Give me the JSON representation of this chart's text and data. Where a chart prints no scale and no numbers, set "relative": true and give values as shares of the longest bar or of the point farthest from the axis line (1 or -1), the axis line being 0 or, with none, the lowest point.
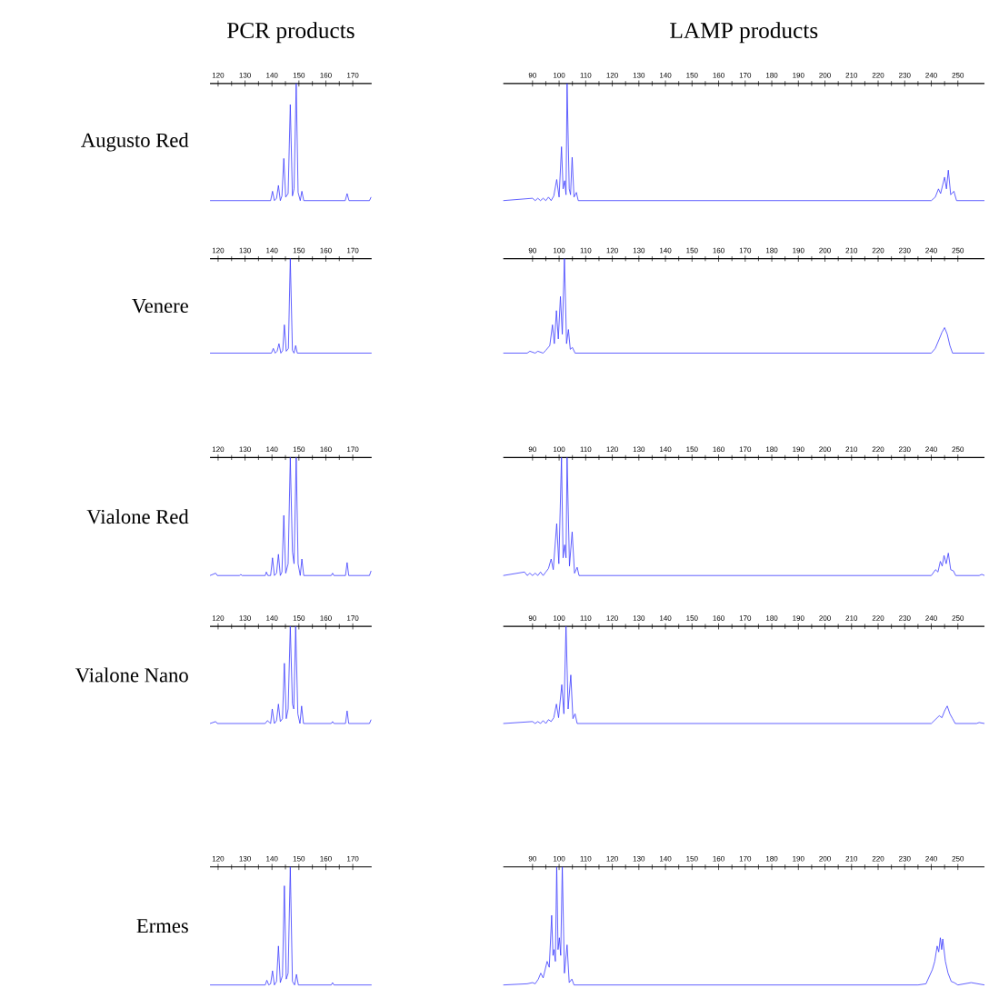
{
  "chart_data": [
    {
      "type": "line",
      "title": "PCR products",
      "ylabel": "Augusto Red",
      "relative": true,
      "xlim": [
        117,
        177
      ],
      "xticks": [
        120,
        130,
        140,
        150,
        160,
        170
      ],
      "x": [
        117,
        139.5,
        140.2,
        140.9,
        141.7,
        142.4,
        143.1,
        143.7,
        144.4,
        145.1,
        146,
        146.8,
        147.6,
        148.2,
        149,
        149.7,
        150.5,
        151.1,
        151.8,
        167.2,
        167.9,
        168.6,
        176.2,
        176.8
      ],
      "series": [
        {
          "color": "#3a3aff",
          "values": [
            0,
            0,
            0.08,
            0,
            0.02,
            0.13,
            0,
            0.04,
            0.36,
            0.03,
            0.06,
            0.82,
            0.04,
            0.1,
            1,
            0.07,
            0,
            0.08,
            0,
            0,
            0.06,
            0,
            0,
            0.03
          ]
        }
      ]
    },
    {
      "type": "line",
      "title": "LAMP products",
      "relative": true,
      "xlim": [
        79,
        260
      ],
      "xticks": [
        90,
        100,
        110,
        120,
        130,
        140,
        150,
        160,
        170,
        180,
        190,
        200,
        210,
        220,
        230,
        240,
        250
      ],
      "x": [
        79,
        90,
        91,
        92,
        93,
        94,
        95,
        96,
        97,
        98,
        99.1,
        100,
        100.9,
        101.5,
        102.1,
        102.6,
        103,
        103.8,
        104.3,
        104.9,
        105.6,
        106.5,
        107.2,
        240,
        241.5,
        242.7,
        243.5,
        245,
        245.7,
        246.4,
        247.3,
        248.5,
        249.5,
        260
      ],
      "series": [
        {
          "color": "#3a3aff",
          "values": [
            0,
            0.02,
            0,
            0.02,
            0,
            0.02,
            0,
            0.03,
            0,
            0.04,
            0.18,
            0.03,
            0.46,
            0.1,
            0.17,
            0.05,
            1,
            0.1,
            0.05,
            0.37,
            0.03,
            0.07,
            0,
            0,
            0.03,
            0.1,
            0.06,
            0.2,
            0.1,
            0.26,
            0.05,
            0.08,
            0,
            0
          ]
        }
      ]
    },
    {
      "type": "line",
      "ylabel": "Venere",
      "relative": true,
      "xlim": [
        117,
        177
      ],
      "xticks": [
        120,
        130,
        140,
        150,
        160,
        170
      ],
      "x": [
        117,
        139.8,
        140.5,
        141.2,
        141.9,
        142.6,
        143.3,
        144,
        144.6,
        145.3,
        146.1,
        146.8,
        147.6,
        148.2,
        148.8,
        149.4,
        177
      ],
      "series": [
        {
          "color": "#3a3aff",
          "values": [
            0,
            0,
            0.05,
            0,
            0.02,
            0.1,
            0,
            0.03,
            0.3,
            0.02,
            0.05,
            1,
            0.03,
            0,
            0.08,
            0,
            0
          ]
        }
      ]
    },
    {
      "type": "line",
      "relative": true,
      "xlim": [
        79,
        260
      ],
      "xticks": [
        90,
        100,
        110,
        120,
        130,
        140,
        150,
        160,
        170,
        180,
        190,
        200,
        210,
        220,
        230,
        240,
        250
      ],
      "x": [
        79,
        88,
        89,
        91,
        92,
        94,
        95,
        96.5,
        97.5,
        98.2,
        99,
        99.7,
        100.5,
        101.2,
        102,
        102.8,
        103.5,
        104.2,
        105,
        106,
        240,
        241.5,
        243,
        244,
        245,
        246,
        247,
        248,
        260
      ],
      "series": [
        {
          "color": "#3a3aff",
          "values": [
            0,
            0,
            0.02,
            0,
            0.02,
            0,
            0.03,
            0.08,
            0.3,
            0.1,
            0.45,
            0.15,
            0.6,
            0.2,
            1,
            0.1,
            0.25,
            0.04,
            0.06,
            0,
            0,
            0.05,
            0.15,
            0.22,
            0.27,
            0.2,
            0.08,
            0,
            0
          ]
        }
      ]
    },
    {
      "type": "line",
      "ylabel": "Vialone Red",
      "relative": true,
      "xlim": [
        117,
        177
      ],
      "xticks": [
        120,
        130,
        140,
        150,
        160,
        170
      ],
      "x": [
        117,
        119.1,
        119.7,
        128,
        128.4,
        128.9,
        137.5,
        137.9,
        138.5,
        139.5,
        140.2,
        140.9,
        141.7,
        142.4,
        143.1,
        143.7,
        144.4,
        145.1,
        146,
        146.8,
        147.6,
        148.2,
        149,
        149.7,
        150.5,
        151.1,
        151.8,
        162,
        162.5,
        163,
        167.3,
        167.9,
        168.5,
        176.2,
        176.8
      ],
      "series": [
        {
          "color": "#3a3aff",
          "values": [
            0,
            0.02,
            0,
            0,
            0.01,
            0,
            0,
            0.03,
            0,
            0,
            0.15,
            0,
            0.02,
            0.18,
            0,
            0.03,
            0.51,
            0.02,
            0.1,
            1,
            0.2,
            0.1,
            1,
            0.1,
            0,
            0.14,
            0,
            0,
            0.02,
            0,
            0,
            0.11,
            0,
            0,
            0.04
          ]
        }
      ]
    },
    {
      "type": "line",
      "relative": true,
      "xlim": [
        79,
        260
      ],
      "xticks": [
        90,
        100,
        110,
        120,
        130,
        140,
        150,
        160,
        170,
        180,
        190,
        200,
        210,
        220,
        230,
        240,
        250
      ],
      "x": [
        79,
        87,
        88,
        89,
        90,
        91,
        92,
        93,
        94,
        95,
        96,
        97,
        97.8,
        99.1,
        99.9,
        100.9,
        101.5,
        102.1,
        102.6,
        103,
        103.9,
        104.9,
        105.8,
        106.8,
        107.5,
        240,
        241.6,
        242.5,
        243.4,
        244.1,
        244.8,
        245.6,
        246.4,
        247.3,
        248.3,
        249.2,
        258,
        259,
        260
      ],
      "series": [
        {
          "color": "#3a3aff",
          "values": [
            0,
            0.03,
            0,
            0.02,
            0,
            0.02,
            0,
            0.03,
            0,
            0.03,
            0.06,
            0.14,
            0.05,
            0.44,
            0.1,
            1,
            0.15,
            0.26,
            0.15,
            1,
            0.08,
            0.37,
            0.02,
            0.07,
            0,
            0,
            0.05,
            0.03,
            0.12,
            0.08,
            0.17,
            0.1,
            0.19,
            0.05,
            0.04,
            0,
            0,
            0.01,
            0
          ]
        }
      ]
    },
    {
      "type": "line",
      "ylabel": "Vialone Nano",
      "relative": true,
      "xlim": [
        117,
        177
      ],
      "xticks": [
        120,
        130,
        140,
        150,
        160,
        170
      ],
      "x": [
        117,
        119.1,
        119.7,
        137.5,
        138.3,
        139.5,
        140.1,
        140.9,
        141.7,
        142.4,
        143.1,
        143.9,
        144.6,
        145.3,
        146,
        146.8,
        147.6,
        148.1,
        148.8,
        149.6,
        150.4,
        151,
        151.7,
        162,
        162.5,
        163,
        167.3,
        167.9,
        168.5,
        176.2,
        176.8
      ],
      "series": [
        {
          "color": "#3a3aff",
          "values": [
            0,
            0.02,
            0,
            0,
            0.03,
            0,
            0.15,
            0,
            0.03,
            0.2,
            0.02,
            0.05,
            0.62,
            0.05,
            0.15,
            1,
            0.2,
            0.15,
            1,
            0.1,
            0,
            0.18,
            0,
            0,
            0.02,
            0,
            0,
            0.13,
            0,
            0,
            0.04
          ]
        }
      ]
    },
    {
      "type": "line",
      "relative": true,
      "xlim": [
        79,
        260
      ],
      "xticks": [
        90,
        100,
        110,
        120,
        130,
        140,
        150,
        160,
        170,
        180,
        190,
        200,
        210,
        220,
        230,
        240,
        250
      ],
      "x": [
        79,
        90,
        91,
        92,
        93,
        94,
        95,
        96,
        97,
        98,
        99,
        99.8,
        101,
        101.8,
        102.6,
        103.4,
        104.4,
        105.2,
        106,
        106.8,
        240,
        241.5,
        243,
        244,
        245,
        246,
        247,
        248,
        249,
        257,
        258,
        260
      ],
      "series": [
        {
          "color": "#3a3aff",
          "values": [
            0,
            0.02,
            0,
            0.02,
            0,
            0.03,
            0,
            0.04,
            0.02,
            0.06,
            0.2,
            0.06,
            0.4,
            0.1,
            1,
            0.15,
            0.5,
            0.05,
            0.1,
            0,
            0,
            0.04,
            0.08,
            0.06,
            0.13,
            0.18,
            0.1,
            0.05,
            0,
            0,
            0.01,
            0
          ]
        }
      ]
    },
    {
      "type": "line",
      "ylabel": "Ermes",
      "relative": true,
      "xlim": [
        117,
        177
      ],
      "xticks": [
        120,
        130,
        140,
        150,
        160,
        170
      ],
      "x": [
        117,
        137.5,
        138.1,
        138.8,
        139.5,
        140.2,
        140.9,
        141.7,
        142.4,
        143.1,
        143.9,
        144.6,
        145.3,
        146,
        146.8,
        147.6,
        148.4,
        149.1,
        149.8,
        162,
        162.5,
        163,
        177
      ],
      "series": [
        {
          "color": "#3a3aff",
          "values": [
            0,
            0,
            0.04,
            0,
            0.01,
            0.12,
            0,
            0.03,
            0.33,
            0.02,
            0.08,
            0.84,
            0.05,
            0.1,
            1,
            0.03,
            0,
            0.09,
            0,
            0,
            0.02,
            0,
            0
          ]
        }
      ]
    },
    {
      "type": "line",
      "relative": true,
      "xlim": [
        79,
        260
      ],
      "xticks": [
        90,
        100,
        110,
        120,
        130,
        140,
        150,
        160,
        170,
        180,
        190,
        200,
        210,
        220,
        230,
        240,
        250
      ],
      "x": [
        79,
        88,
        90,
        91,
        92.2,
        93.1,
        94,
        95.5,
        96.3,
        97.2,
        97.7,
        98.1,
        98.6,
        99.1,
        99.6,
        100.1,
        100.6,
        101.2,
        102,
        103,
        103.8,
        104.8,
        105.6,
        235,
        238,
        240.4,
        241.3,
        242.2,
        242.8,
        243.4,
        243.9,
        244.3,
        245.3,
        246.3,
        247.5,
        248.6,
        250,
        255,
        260
      ],
      "series": [
        {
          "color": "#3a3aff",
          "values": [
            0,
            0.01,
            0.02,
            0.01,
            0.05,
            0.1,
            0.06,
            0.2,
            0.15,
            0.59,
            0.25,
            0.3,
            0.2,
            1,
            0.3,
            0.4,
            0.25,
            1,
            0.1,
            0.34,
            0.02,
            0.05,
            0,
            0,
            0.01,
            0.13,
            0.2,
            0.33,
            0.28,
            0.4,
            0.3,
            0.39,
            0.2,
            0.1,
            0.03,
            0.02,
            0,
            0.02,
            0
          ]
        }
      ]
    }
  ]
}
